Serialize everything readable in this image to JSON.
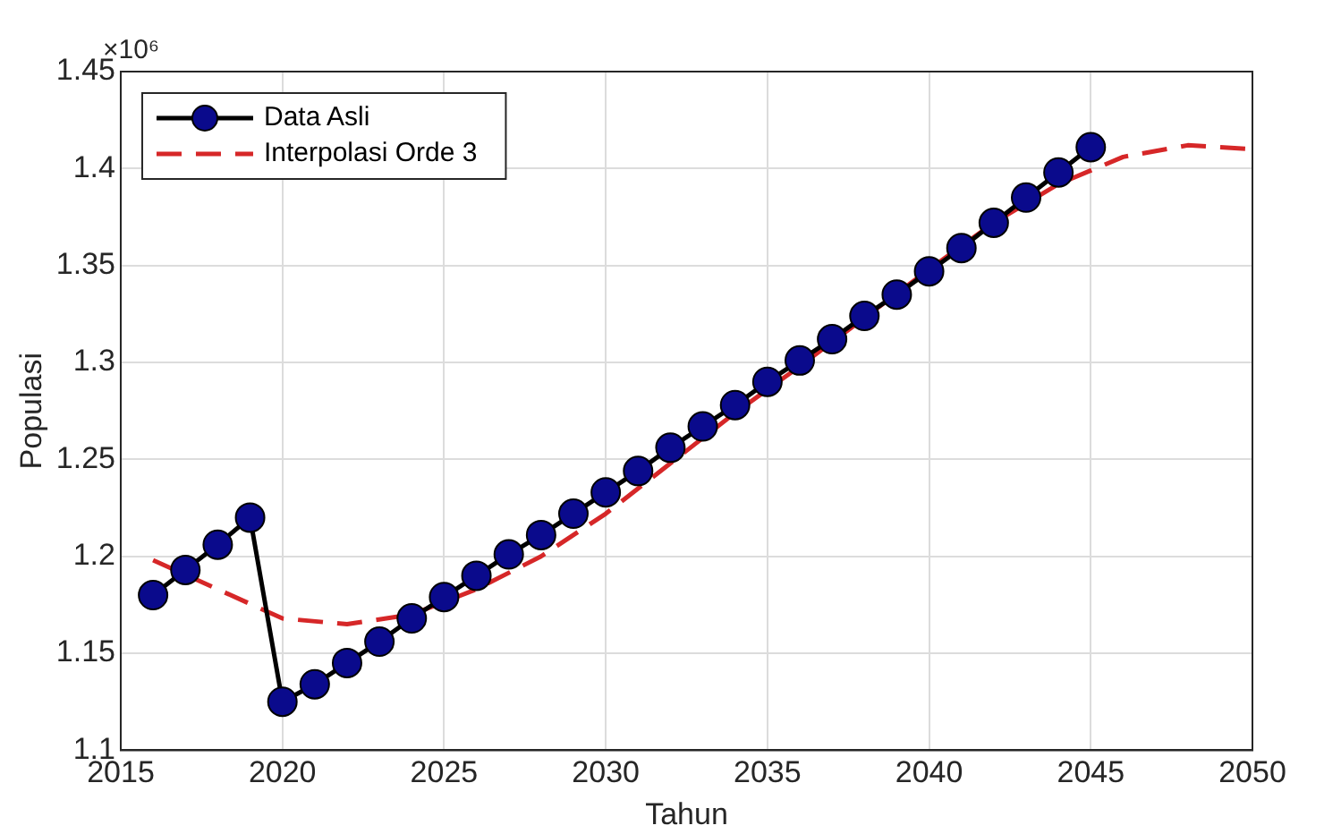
{
  "chart_data": {
    "type": "line",
    "xlabel": "Tahun",
    "ylabel": "Populasi",
    "annotations": [
      "×10⁶"
    ],
    "xlim": [
      2015,
      2050
    ],
    "xticks": [
      2015,
      2020,
      2025,
      2030,
      2035,
      2040,
      2045,
      2050
    ],
    "ylim": [
      1.1,
      1.45
    ],
    "yticks": [
      1.1,
      1.15,
      1.2,
      1.25,
      1.3,
      1.35,
      1.4,
      1.45
    ],
    "grid": true,
    "legend": "top left",
    "series": [
      {
        "name": "Data Asli",
        "color": "#000000",
        "marker": "circle",
        "line_style": "solid",
        "x": [
          2016,
          2017,
          2018,
          2019,
          2020,
          2021,
          2022,
          2023,
          2024,
          2025,
          2026,
          2027,
          2028,
          2029,
          2030,
          2031,
          2032,
          2033,
          2034,
          2035,
          2036,
          2037,
          2038,
          2039,
          2040,
          2041,
          2042,
          2043,
          2044,
          2045
        ],
        "values": [
          1.18,
          1.193,
          1.206,
          1.22,
          1.125,
          1.134,
          1.145,
          1.156,
          1.168,
          1.179,
          1.19,
          1.201,
          1.211,
          1.222,
          1.233,
          1.244,
          1.256,
          1.267,
          1.278,
          1.29,
          1.301,
          1.312,
          1.324,
          1.335,
          1.347,
          1.359,
          1.372,
          1.385,
          1.398,
          1.411
        ]
      },
      {
        "name": "Interpolasi Orde 3",
        "color": "#d62728",
        "marker": "none",
        "line_style": "dashed",
        "x": [
          2016,
          2018,
          2020,
          2022,
          2024,
          2026,
          2028,
          2030,
          2032,
          2034,
          2036,
          2038,
          2040,
          2042,
          2044,
          2046,
          2048,
          2050
        ],
        "values": [
          1.198,
          1.183,
          1.168,
          1.165,
          1.17,
          1.183,
          1.2,
          1.222,
          1.248,
          1.274,
          1.298,
          1.323,
          1.348,
          1.372,
          1.392,
          1.406,
          1.412,
          1.41
        ]
      }
    ]
  }
}
